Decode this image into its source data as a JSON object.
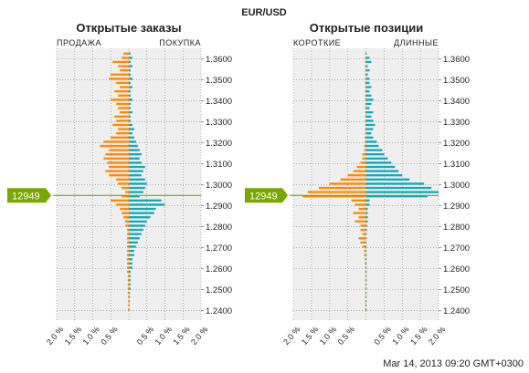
{
  "header": {
    "pair": "EUR/USD",
    "timestamp": "Mar 14, 2013 09:20 GMT+0300"
  },
  "colors": {
    "sell": "#ff8800",
    "buy": "#11a8b8",
    "price_line": "#7aa600",
    "plot_bg": "#efefef"
  },
  "price_marker": {
    "label": "12949",
    "value": 1.2949
  },
  "chart_data": [
    {
      "type": "bar",
      "orientation": "horizontal",
      "title": "Открытые заказы",
      "left_label": "ПРОДАЖА",
      "right_label": "ПОКУПКА",
      "y_ticks": [
        "1.3600",
        "1.3500",
        "1.3400",
        "1.3300",
        "1.3200",
        "1.3100",
        "1.3000",
        "1.2900",
        "1.2800",
        "1.2700",
        "1.2600",
        "1.2500",
        "1.2400"
      ],
      "x_ticks": [
        "2.0 %",
        "1.5 %",
        "1.0 %",
        "0.5 %",
        "",
        "0.5 %",
        "1.0 %",
        "1.5 %",
        "2.0 %"
      ],
      "xlim": [
        -2.0,
        2.0
      ],
      "ylim": [
        1.2355,
        1.365
      ],
      "bin": 0.001,
      "series": [
        {
          "name": "ПРОДАЖА",
          "side": "left",
          "y": [
            1.362,
            1.36,
            1.358,
            1.356,
            1.354,
            1.352,
            1.35,
            1.348,
            1.346,
            1.344,
            1.342,
            1.34,
            1.338,
            1.336,
            1.334,
            1.332,
            1.33,
            1.328,
            1.326,
            1.324,
            1.322,
            1.32,
            1.318,
            1.316,
            1.314,
            1.312,
            1.31,
            1.308,
            1.306,
            1.304,
            1.302,
            1.3,
            1.298,
            1.296,
            1.294,
            1.292,
            1.29,
            1.288,
            1.286,
            1.284,
            1.282,
            1.28,
            1.278,
            1.276,
            1.274,
            1.272,
            1.27,
            1.268,
            1.266,
            1.264,
            1.262,
            1.26,
            1.258,
            1.256,
            1.254,
            1.252,
            1.25,
            1.248,
            1.246,
            1.244,
            1.242,
            1.24
          ],
          "values": [
            0.15,
            0.2,
            0.45,
            0.3,
            0.25,
            0.5,
            0.55,
            0.35,
            0.25,
            0.4,
            0.3,
            0.5,
            0.35,
            0.3,
            0.25,
            0.4,
            0.35,
            0.45,
            0.3,
            0.35,
            0.5,
            0.7,
            0.8,
            0.55,
            0.65,
            0.7,
            0.6,
            0.55,
            0.65,
            0.55,
            0.35,
            0.3,
            0.2,
            0.1,
            0.2,
            0.5,
            0.35,
            0.25,
            0.2,
            0.15,
            0.1,
            0.1,
            0.05,
            0.05,
            0.05,
            0.05,
            0.05,
            0.05,
            0.05,
            0.05,
            0.05,
            0.05,
            0.05,
            0.03,
            0.03,
            0.03,
            0.03,
            0.03,
            0.02,
            0.02,
            0.02,
            0.02
          ]
        },
        {
          "name": "ПОКУПКА",
          "side": "right",
          "y": [
            1.362,
            1.36,
            1.358,
            1.356,
            1.354,
            1.352,
            1.35,
            1.348,
            1.346,
            1.344,
            1.342,
            1.34,
            1.338,
            1.336,
            1.334,
            1.332,
            1.33,
            1.328,
            1.326,
            1.324,
            1.322,
            1.32,
            1.318,
            1.316,
            1.314,
            1.312,
            1.31,
            1.308,
            1.306,
            1.304,
            1.302,
            1.3,
            1.298,
            1.296,
            1.294,
            1.292,
            1.29,
            1.288,
            1.286,
            1.284,
            1.282,
            1.28,
            1.278,
            1.276,
            1.274,
            1.272,
            1.27,
            1.268,
            1.266,
            1.264,
            1.262,
            1.26,
            1.258,
            1.256,
            1.254,
            1.252,
            1.25,
            1.248,
            1.246,
            1.244,
            1.242,
            1.24
          ],
          "values": [
            0.05,
            0.1,
            0.05,
            0.1,
            0.05,
            0.05,
            0.1,
            0.05,
            0.1,
            0.05,
            0.05,
            0.1,
            0.05,
            0.05,
            0.1,
            0.05,
            0.05,
            0.1,
            0.15,
            0.1,
            0.15,
            0.2,
            0.25,
            0.3,
            0.35,
            0.3,
            0.35,
            0.45,
            0.4,
            0.35,
            0.45,
            0.5,
            0.45,
            0.4,
            0.3,
            0.9,
            1.0,
            0.75,
            0.7,
            0.6,
            0.5,
            0.45,
            0.4,
            0.35,
            0.3,
            0.25,
            0.2,
            0.15,
            0.15,
            0.1,
            0.1,
            0.1,
            0.05,
            0.05,
            0.05,
            0.05,
            0.05,
            0.03,
            0.03,
            0.02,
            0.02,
            0.02
          ]
        }
      ]
    },
    {
      "type": "bar",
      "orientation": "horizontal",
      "title": "Открытые позиции",
      "left_label": "КОРОТКИЕ",
      "right_label": "ДЛИННЫЕ",
      "y_ticks": [
        "1.3600",
        "1.3500",
        "1.3400",
        "1.3300",
        "1.3200",
        "1.3100",
        "1.3000",
        "1.2900",
        "1.2800",
        "1.2700",
        "1.2600",
        "1.2500",
        "1.2400"
      ],
      "x_ticks": [
        "2.0 %",
        "1.5 %",
        "1.0 %",
        "0.5 %",
        "",
        "0.5 %",
        "1.0 %",
        "1.5 %",
        "2.0 %"
      ],
      "xlim": [
        -2.0,
        2.0
      ],
      "ylim": [
        1.2355,
        1.365
      ],
      "bin": 0.001,
      "series": [
        {
          "name": "КОРОТКИЕ",
          "side": "left",
          "y": [
            1.362,
            1.36,
            1.358,
            1.356,
            1.354,
            1.352,
            1.35,
            1.348,
            1.346,
            1.344,
            1.342,
            1.34,
            1.338,
            1.336,
            1.334,
            1.332,
            1.33,
            1.328,
            1.326,
            1.324,
            1.322,
            1.32,
            1.318,
            1.316,
            1.314,
            1.312,
            1.31,
            1.308,
            1.306,
            1.304,
            1.302,
            1.3,
            1.298,
            1.296,
            1.294,
            1.292,
            1.29,
            1.288,
            1.286,
            1.284,
            1.282,
            1.28,
            1.278,
            1.276,
            1.274,
            1.272,
            1.27,
            1.268,
            1.266,
            1.264,
            1.262,
            1.26,
            1.258,
            1.256,
            1.254,
            1.252,
            1.25,
            1.248,
            1.246,
            1.244,
            1.242,
            1.24
          ],
          "values": [
            0.02,
            0.02,
            0.02,
            0.02,
            0.02,
            0.02,
            0.02,
            0.02,
            0.02,
            0.02,
            0.02,
            0.02,
            0.02,
            0.02,
            0.02,
            0.02,
            0.02,
            0.02,
            0.02,
            0.02,
            0.03,
            0.03,
            0.05,
            0.05,
            0.1,
            0.1,
            0.15,
            0.25,
            0.35,
            0.5,
            0.7,
            1.0,
            1.3,
            1.6,
            1.75,
            0.4,
            0.3,
            0.2,
            0.35,
            0.2,
            0.3,
            0.15,
            0.15,
            0.1,
            0.2,
            0.15,
            0.1,
            0.05,
            0.05,
            0.03,
            0.03,
            0.02,
            0.02,
            0.02,
            0.02,
            0.02,
            0.02,
            0.02,
            0.02,
            0.02,
            0.02,
            0.02
          ]
        },
        {
          "name": "ДЛИННЫЕ",
          "side": "right",
          "y": [
            1.362,
            1.36,
            1.358,
            1.356,
            1.354,
            1.352,
            1.35,
            1.348,
            1.346,
            1.344,
            1.342,
            1.34,
            1.338,
            1.336,
            1.334,
            1.332,
            1.33,
            1.328,
            1.326,
            1.324,
            1.322,
            1.32,
            1.318,
            1.316,
            1.314,
            1.312,
            1.31,
            1.308,
            1.306,
            1.304,
            1.302,
            1.3,
            1.298,
            1.296,
            1.294,
            1.292,
            1.29,
            1.288,
            1.286,
            1.284,
            1.282,
            1.28,
            1.278,
            1.276,
            1.274,
            1.272,
            1.27,
            1.268,
            1.266,
            1.264,
            1.262,
            1.26,
            1.258,
            1.256,
            1.254,
            1.252,
            1.25,
            1.248,
            1.246,
            1.244,
            1.242,
            1.24
          ],
          "values": [
            0.02,
            0.1,
            0.15,
            0.05,
            0.1,
            0.05,
            0.1,
            0.1,
            0.15,
            0.1,
            0.15,
            0.2,
            0.15,
            0.1,
            0.2,
            0.15,
            0.2,
            0.25,
            0.2,
            0.15,
            0.2,
            0.3,
            0.35,
            0.45,
            0.5,
            0.6,
            0.7,
            0.8,
            0.9,
            1.0,
            1.2,
            1.6,
            1.8,
            2.0,
            1.7,
            0.1,
            0.1,
            0.05,
            0.05,
            0.05,
            0.05,
            0.03,
            0.03,
            0.02,
            0.02,
            0.02,
            0.02,
            0.02,
            0.02,
            0.02,
            0.02,
            0.02,
            0.02,
            0.02,
            0.02,
            0.02,
            0.02,
            0.02,
            0.02,
            0.02,
            0.02,
            0.02
          ]
        }
      ]
    }
  ]
}
